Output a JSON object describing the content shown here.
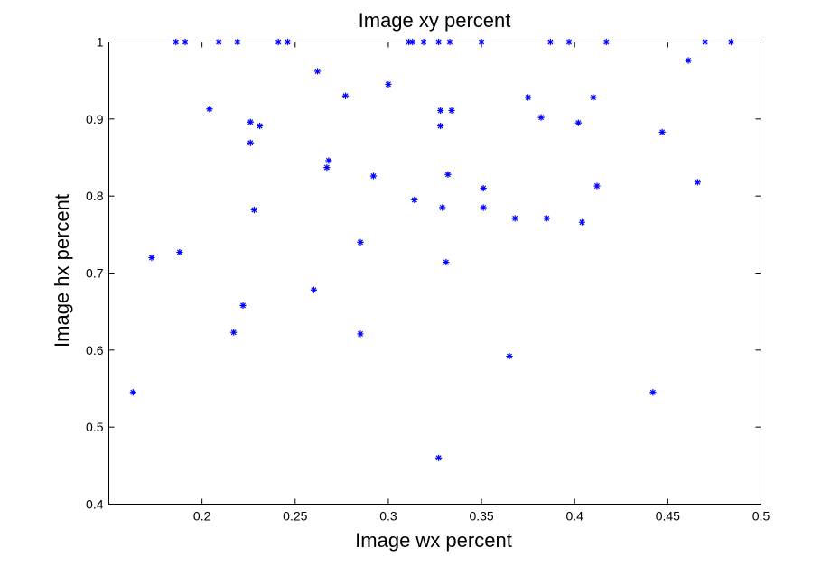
{
  "chart_data": {
    "type": "scatter",
    "title": "Image xy percent",
    "xlabel": "Image wx percent",
    "ylabel": "Image hx percent",
    "xlim": [
      0.15,
      0.5
    ],
    "ylim": [
      0.4,
      1.0
    ],
    "xticks": [
      0.2,
      0.25,
      0.3,
      0.35,
      0.4,
      0.45,
      0.5
    ],
    "xtick_labels": [
      "0.2",
      "0.25",
      "0.3",
      "0.35",
      "0.4",
      "0.45",
      "0.5"
    ],
    "yticks": [
      0.4,
      0.5,
      0.6,
      0.7,
      0.8,
      0.9,
      1.0
    ],
    "ytick_labels": [
      "0.4",
      "0.5",
      "0.6",
      "0.7",
      "0.8",
      "0.9",
      "1"
    ],
    "grid": false,
    "marker": "*",
    "marker_color": "#0000ff",
    "points": [
      {
        "x": 0.186,
        "y": 1.0
      },
      {
        "x": 0.191,
        "y": 1.0
      },
      {
        "x": 0.209,
        "y": 1.0
      },
      {
        "x": 0.219,
        "y": 1.0
      },
      {
        "x": 0.241,
        "y": 1.0
      },
      {
        "x": 0.246,
        "y": 1.0
      },
      {
        "x": 0.311,
        "y": 1.0
      },
      {
        "x": 0.313,
        "y": 1.0
      },
      {
        "x": 0.319,
        "y": 1.0
      },
      {
        "x": 0.327,
        "y": 1.0
      },
      {
        "x": 0.333,
        "y": 1.0
      },
      {
        "x": 0.35,
        "y": 1.0
      },
      {
        "x": 0.387,
        "y": 1.0
      },
      {
        "x": 0.397,
        "y": 1.0
      },
      {
        "x": 0.417,
        "y": 1.0
      },
      {
        "x": 0.47,
        "y": 1.0
      },
      {
        "x": 0.484,
        "y": 1.0
      },
      {
        "x": 0.262,
        "y": 0.962
      },
      {
        "x": 0.461,
        "y": 0.976
      },
      {
        "x": 0.3,
        "y": 0.945
      },
      {
        "x": 0.277,
        "y": 0.93
      },
      {
        "x": 0.375,
        "y": 0.928
      },
      {
        "x": 0.41,
        "y": 0.928
      },
      {
        "x": 0.204,
        "y": 0.913
      },
      {
        "x": 0.328,
        "y": 0.911
      },
      {
        "x": 0.334,
        "y": 0.911
      },
      {
        "x": 0.382,
        "y": 0.902
      },
      {
        "x": 0.226,
        "y": 0.896
      },
      {
        "x": 0.231,
        "y": 0.891
      },
      {
        "x": 0.328,
        "y": 0.891
      },
      {
        "x": 0.402,
        "y": 0.895
      },
      {
        "x": 0.447,
        "y": 0.883
      },
      {
        "x": 0.226,
        "y": 0.869
      },
      {
        "x": 0.268,
        "y": 0.846
      },
      {
        "x": 0.267,
        "y": 0.837
      },
      {
        "x": 0.292,
        "y": 0.826
      },
      {
        "x": 0.332,
        "y": 0.828
      },
      {
        "x": 0.466,
        "y": 0.818
      },
      {
        "x": 0.412,
        "y": 0.813
      },
      {
        "x": 0.351,
        "y": 0.81
      },
      {
        "x": 0.314,
        "y": 0.795
      },
      {
        "x": 0.329,
        "y": 0.785
      },
      {
        "x": 0.351,
        "y": 0.785
      },
      {
        "x": 0.228,
        "y": 0.782
      },
      {
        "x": 0.368,
        "y": 0.771
      },
      {
        "x": 0.385,
        "y": 0.771
      },
      {
        "x": 0.404,
        "y": 0.766
      },
      {
        "x": 0.285,
        "y": 0.74
      },
      {
        "x": 0.188,
        "y": 0.727
      },
      {
        "x": 0.173,
        "y": 0.72
      },
      {
        "x": 0.331,
        "y": 0.714
      },
      {
        "x": 0.26,
        "y": 0.678
      },
      {
        "x": 0.222,
        "y": 0.658
      },
      {
        "x": 0.217,
        "y": 0.623
      },
      {
        "x": 0.285,
        "y": 0.621
      },
      {
        "x": 0.365,
        "y": 0.592
      },
      {
        "x": 0.163,
        "y": 0.545
      },
      {
        "x": 0.442,
        "y": 0.545
      },
      {
        "x": 0.327,
        "y": 0.46
      }
    ]
  }
}
